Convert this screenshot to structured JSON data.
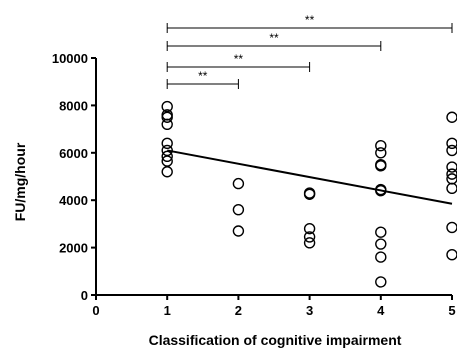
{
  "chart_data": {
    "type": "scatter",
    "title": "",
    "xlabel": "Classification of cognitive impairment",
    "ylabel": "FU/mg/hour",
    "xlim": [
      0,
      5
    ],
    "ylim": [
      0,
      10000
    ],
    "x_ticks": [
      "0",
      "1",
      "2",
      "3",
      "4",
      "5"
    ],
    "y_ticks": [
      "0",
      "2000",
      "4000",
      "6000",
      "8000",
      "10000"
    ],
    "grid": false,
    "points": [
      {
        "x": 1,
        "y": 7950
      },
      {
        "x": 1,
        "y": 7600
      },
      {
        "x": 1,
        "y": 7500
      },
      {
        "x": 1,
        "y": 7200
      },
      {
        "x": 1,
        "y": 6400
      },
      {
        "x": 1,
        "y": 6100
      },
      {
        "x": 1,
        "y": 5850
      },
      {
        "x": 1,
        "y": 5650
      },
      {
        "x": 1,
        "y": 5200
      },
      {
        "x": 2,
        "y": 4700
      },
      {
        "x": 2,
        "y": 3600
      },
      {
        "x": 2,
        "y": 2700
      },
      {
        "x": 3,
        "y": 4300
      },
      {
        "x": 3,
        "y": 4250
      },
      {
        "x": 3,
        "y": 2800
      },
      {
        "x": 3,
        "y": 2450
      },
      {
        "x": 3,
        "y": 2200
      },
      {
        "x": 4,
        "y": 6300
      },
      {
        "x": 4,
        "y": 6000
      },
      {
        "x": 4,
        "y": 5500
      },
      {
        "x": 4,
        "y": 5450
      },
      {
        "x": 4,
        "y": 4450
      },
      {
        "x": 4,
        "y": 4400
      },
      {
        "x": 4,
        "y": 2650
      },
      {
        "x": 4,
        "y": 2150
      },
      {
        "x": 4,
        "y": 1600
      },
      {
        "x": 4,
        "y": 550
      },
      {
        "x": 5,
        "y": 7500
      },
      {
        "x": 5,
        "y": 6400
      },
      {
        "x": 5,
        "y": 6100
      },
      {
        "x": 5,
        "y": 5400
      },
      {
        "x": 5,
        "y": 5100
      },
      {
        "x": 5,
        "y": 4900
      },
      {
        "x": 5,
        "y": 4500
      },
      {
        "x": 5,
        "y": 2850
      },
      {
        "x": 5,
        "y": 1700
      }
    ],
    "regression_line": {
      "x1": 1,
      "y1": 6100,
      "x2": 5,
      "y2": 3850
    },
    "significance_brackets": [
      {
        "from": 1,
        "to": 2,
        "label": "**"
      },
      {
        "from": 1,
        "to": 3,
        "label": "**"
      },
      {
        "from": 1,
        "to": 4,
        "label": "**"
      },
      {
        "from": 1,
        "to": 5,
        "label": "**"
      }
    ]
  }
}
